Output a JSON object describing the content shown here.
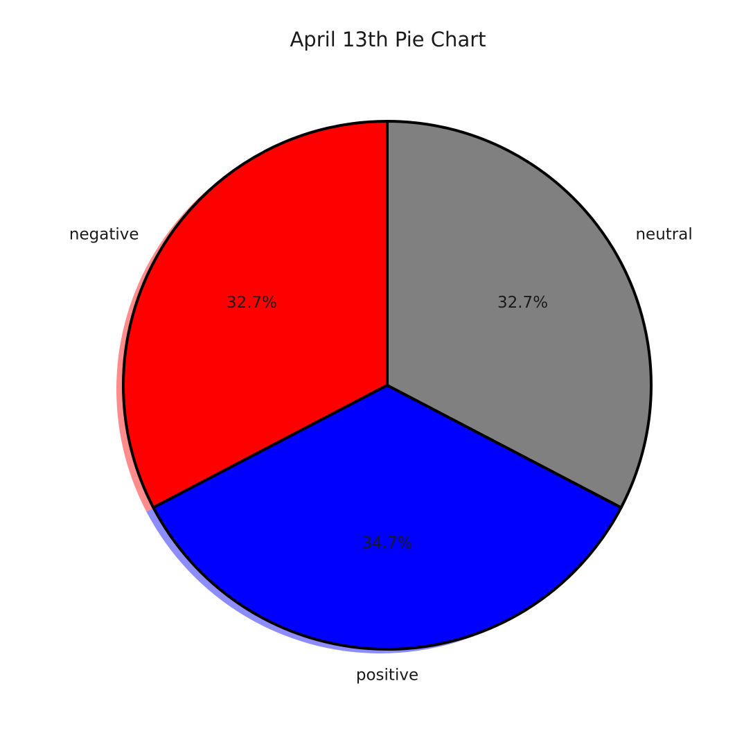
{
  "chart_data": {
    "type": "pie",
    "title": "April 13th Pie Chart",
    "start_angle_deg": 90,
    "direction": "counterclockwise",
    "shadow": true,
    "slices": [
      {
        "label": "negative",
        "value": 32.7,
        "pct_label": "32.7%",
        "color": "#ff0000"
      },
      {
        "label": "positive",
        "value": 34.7,
        "pct_label": "34.7%",
        "color": "#0000ff"
      },
      {
        "label": "neutral",
        "value": 32.7,
        "pct_label": "32.7%",
        "color": "#808080"
      }
    ],
    "edge_color": "#000000"
  }
}
